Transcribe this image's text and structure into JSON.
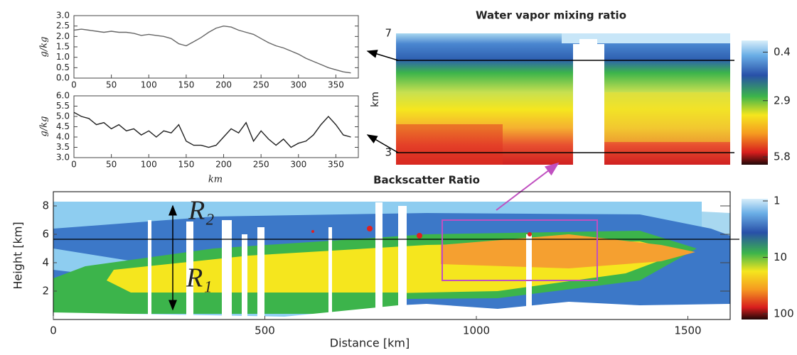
{
  "chart_data": [
    {
      "type": "line",
      "ylabel": "g/kg",
      "xlim": [
        0,
        380
      ],
      "ylim": [
        0,
        3
      ],
      "xticks": [
        0,
        50,
        100,
        150,
        200,
        250,
        300,
        350
      ],
      "yticks": [
        {
          "value": 0,
          "label": "0.0"
        },
        0.5,
        {
          "value": 1,
          "label": "1.0"
        },
        1.5,
        {
          "value": 2,
          "label": "2.0"
        },
        2.5,
        {
          "value": 3,
          "label": "3.0"
        }
      ],
      "x": [
        0,
        10,
        20,
        30,
        40,
        50,
        60,
        70,
        80,
        90,
        100,
        110,
        120,
        130,
        140,
        150,
        160,
        170,
        180,
        190,
        200,
        210,
        220,
        230,
        240,
        250,
        260,
        270,
        280,
        290,
        300,
        310,
        320,
        330,
        340,
        350,
        360,
        370
      ],
      "series": [
        {
          "color": "#666666",
          "values": [
            2.3,
            2.35,
            2.3,
            2.25,
            2.2,
            2.25,
            2.2,
            2.2,
            2.15,
            2.05,
            2.1,
            2.05,
            2.0,
            1.9,
            1.65,
            1.55,
            1.75,
            1.95,
            2.2,
            2.4,
            2.5,
            2.45,
            2.3,
            2.2,
            2.1,
            1.9,
            1.7,
            1.55,
            1.45,
            1.3,
            1.15,
            0.95,
            0.8,
            0.65,
            0.5,
            0.4,
            0.3,
            0.25
          ]
        }
      ]
    },
    {
      "type": "line",
      "ylabel": "g/kg",
      "xlabel": "km",
      "xlim": [
        0,
        380
      ],
      "ylim": [
        3,
        6
      ],
      "xticks": [
        0,
        50,
        100,
        150,
        200,
        250,
        300,
        350
      ],
      "yticks": [
        {
          "value": 3,
          "label": "3.0"
        },
        3.5,
        {
          "value": 4,
          "label": "4.0"
        },
        4.5,
        {
          "value": 5,
          "label": "5.0"
        },
        5.5,
        {
          "value": 6,
          "label": "6.0"
        }
      ],
      "x": [
        0,
        10,
        20,
        30,
        40,
        50,
        60,
        70,
        80,
        90,
        100,
        110,
        120,
        130,
        140,
        150,
        160,
        170,
        180,
        190,
        200,
        210,
        220,
        230,
        240,
        250,
        260,
        270,
        280,
        290,
        300,
        310,
        320,
        330,
        340,
        350,
        360,
        370
      ],
      "series": [
        {
          "color": "#222222",
          "values": [
            5.2,
            5.0,
            4.9,
            4.6,
            4.7,
            4.4,
            4.6,
            4.3,
            4.4,
            4.1,
            4.3,
            4.0,
            4.3,
            4.2,
            4.6,
            3.8,
            3.6,
            3.6,
            3.5,
            3.6,
            4.0,
            4.4,
            4.2,
            4.7,
            3.8,
            4.3,
            3.9,
            3.6,
            3.9,
            3.5,
            3.7,
            3.8,
            4.1,
            4.6,
            5.0,
            4.6,
            4.1,
            4.0
          ]
        }
      ]
    },
    {
      "type": "heatmap",
      "title": "Water vapor mixing ratio",
      "ylabel": "km",
      "ylim": [
        2.6,
        7
      ],
      "yticks": [
        3,
        7
      ],
      "colorbar": {
        "lim": [
          -0.2,
          6.2
        ],
        "ticks": [
          0.4,
          2.9,
          5.8
        ]
      }
    },
    {
      "type": "heatmap",
      "title": "Backscatter Ratio",
      "xlabel": "Distance [km]",
      "ylabel": "Height [km]",
      "xlim": [
        0,
        1600
      ],
      "ylim": [
        0,
        9
      ],
      "xticks": [
        0,
        500,
        1000,
        1500
      ],
      "yticks": [
        2,
        4,
        6,
        8
      ],
      "annotations": [
        "R₂",
        "R₁"
      ],
      "colorbar": {
        "lim": [
          1,
          100
        ],
        "log": true,
        "ticks": [
          1,
          10,
          100
        ]
      }
    }
  ]
}
